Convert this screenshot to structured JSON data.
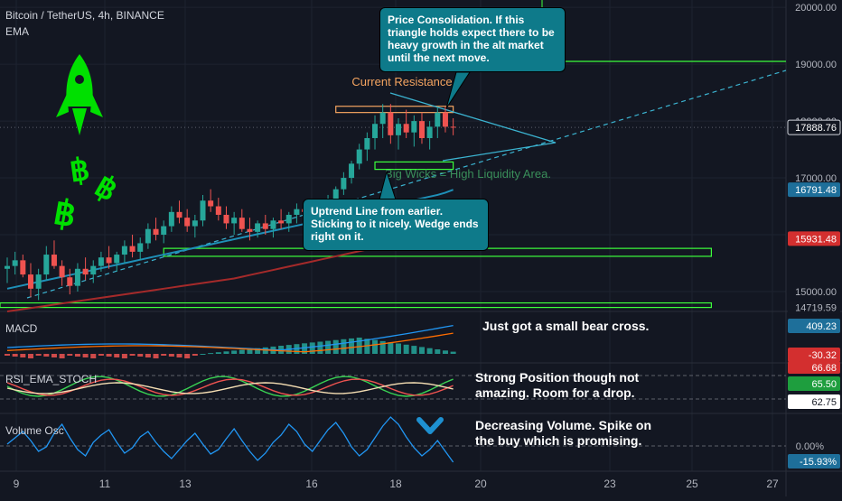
{
  "header": {
    "symbol": "Bitcoin / TetherUS, 4h, BINANCE",
    "indicator": "EMA"
  },
  "colors": {
    "background": "#131722",
    "up": "#26a69a",
    "down": "#ef5350",
    "ema_fast": "#1e90b8",
    "ema_slow": "#a52a2a",
    "zone": "#3cff3c",
    "resistance": "#f4a460",
    "callout": "#0e7a8a",
    "rocket": "#00e000"
  },
  "chart_data": {
    "type": "candlestick",
    "x_tick_labels": [
      "9",
      "11",
      "13",
      "16",
      "18",
      "20",
      "23",
      "25",
      "27"
    ],
    "price_axis_labels": [
      "20000.00",
      "19000.00",
      "18000.00",
      "17000.00",
      "15000.00"
    ],
    "price_tags": [
      {
        "label": "17888.76",
        "value": 17888.76,
        "style": "outline"
      },
      {
        "label": "16791.48",
        "value": 16791.48,
        "style": "ema"
      },
      {
        "label": "15931.48",
        "value": 15931.48,
        "style": "ema-slow"
      },
      {
        "label": "14719.59",
        "value": 14719.59,
        "style": "plain"
      }
    ],
    "ylim": [
      14650,
      20130
    ],
    "candles": [
      [
        15400,
        15600,
        15150,
        15450
      ],
      [
        15450,
        15700,
        15300,
        15550
      ],
      [
        15550,
        15650,
        15250,
        15300
      ],
      [
        15300,
        15500,
        14900,
        15050
      ],
      [
        15050,
        15400,
        14850,
        15300
      ],
      [
        15300,
        15800,
        15200,
        15650
      ],
      [
        15650,
        15900,
        15400,
        15450
      ],
      [
        15450,
        15550,
        15100,
        15250
      ],
      [
        15250,
        15400,
        14950,
        15100
      ],
      [
        15100,
        15500,
        15000,
        15400
      ],
      [
        15400,
        15600,
        15200,
        15300
      ],
      [
        15300,
        15550,
        15150,
        15450
      ],
      [
        15450,
        15700,
        15350,
        15600
      ],
      [
        15600,
        15800,
        15400,
        15500
      ],
      [
        15500,
        15700,
        15350,
        15650
      ],
      [
        15650,
        15900,
        15500,
        15800
      ],
      [
        15800,
        16000,
        15600,
        15700
      ],
      [
        15700,
        15950,
        15550,
        15850
      ],
      [
        15850,
        16200,
        15750,
        16100
      ],
      [
        16100,
        16300,
        15900,
        16000
      ],
      [
        16000,
        16250,
        15850,
        16150
      ],
      [
        16150,
        16500,
        16050,
        16400
      ],
      [
        16400,
        16600,
        16200,
        16300
      ],
      [
        16300,
        16450,
        16050,
        16150
      ],
      [
        16150,
        16350,
        15950,
        16250
      ],
      [
        16250,
        16700,
        16150,
        16600
      ],
      [
        16600,
        16800,
        16400,
        16500
      ],
      [
        16500,
        16650,
        16250,
        16350
      ],
      [
        16350,
        16500,
        16100,
        16200
      ],
      [
        16200,
        16400,
        16000,
        16300
      ],
      [
        16300,
        16450,
        16050,
        16100
      ],
      [
        16100,
        16300,
        15900,
        16050
      ],
      [
        16050,
        16250,
        15950,
        16200
      ],
      [
        16200,
        16350,
        16000,
        16100
      ],
      [
        16100,
        16300,
        15950,
        16250
      ],
      [
        16250,
        16450,
        16100,
        16200
      ],
      [
        16200,
        16400,
        16050,
        16350
      ],
      [
        16350,
        16550,
        16200,
        16450
      ],
      [
        16450,
        16600,
        16300,
        16400
      ],
      [
        16400,
        16550,
        16150,
        16300
      ],
      [
        16300,
        16500,
        16200,
        16450
      ],
      [
        16450,
        16700,
        16350,
        16600
      ],
      [
        16600,
        16850,
        16500,
        16800
      ],
      [
        16800,
        17100,
        16700,
        17000
      ],
      [
        17000,
        17300,
        16900,
        17250
      ],
      [
        17250,
        17600,
        17150,
        17500
      ],
      [
        17500,
        17800,
        17300,
        17700
      ],
      [
        17700,
        18100,
        17500,
        17950
      ],
      [
        17950,
        18300,
        17700,
        18150
      ],
      [
        18150,
        18300,
        17600,
        17750
      ],
      [
        17750,
        18050,
        17500,
        17950
      ],
      [
        17950,
        18200,
        17700,
        17800
      ],
      [
        17800,
        18100,
        17550,
        18000
      ],
      [
        18000,
        18150,
        17600,
        17700
      ],
      [
        17700,
        18000,
        17500,
        17900
      ],
      [
        17900,
        18250,
        17700,
        18150
      ],
      [
        18150,
        18250,
        17800,
        17900
      ],
      [
        17900,
        18050,
        17750,
        17890
      ]
    ],
    "series": [
      {
        "name": "EMA",
        "values": [
          15050,
          15080,
          15110,
          15140,
          15170,
          15200,
          15230,
          15260,
          15290,
          15320,
          15350,
          15380,
          15410,
          15440,
          15470,
          15500,
          15530,
          15560,
          15590,
          15620,
          15650,
          15680,
          15710,
          15740,
          15770,
          15800,
          15830,
          15860,
          15890,
          15920,
          15950,
          15980,
          16010,
          16040,
          16070,
          16100,
          16130,
          16160,
          16190,
          16220,
          16250,
          16280,
          16310,
          16340,
          16370,
          16400,
          16430,
          16460,
          16490,
          16520,
          16550,
          16580,
          16610,
          16640,
          16670,
          16700,
          16740,
          16791
        ]
      }
    ],
    "ema_slow_values": [
      14650,
      14670,
      14690,
      14710,
      14730,
      14750,
      14770,
      14790,
      14810,
      14830,
      14850,
      14870,
      14890,
      14910,
      14930,
      14950,
      14970,
      14990,
      15010,
      15030,
      15050,
      15070,
      15090,
      15110,
      15130,
      15150,
      15170,
      15190,
      15210,
      15230,
      15260,
      15290,
      15320,
      15350,
      15380,
      15410,
      15440,
      15470,
      15500,
      15530,
      15560,
      15590,
      15620,
      15650,
      15680,
      15710,
      15740,
      15770,
      15800,
      15830,
      15860,
      15880,
      15900,
      15910,
      15920,
      15925,
      15928,
      15931
    ],
    "zones": [
      {
        "kind": "resistance",
        "low": 18150,
        "high": 18260,
        "start": 42,
        "end": 57
      },
      {
        "kind": "support",
        "low": 17150,
        "high": 17280,
        "start": 47,
        "end": 57
      },
      {
        "kind": "support",
        "low": 15620,
        "high": 15760,
        "start": 20,
        "end": 90
      },
      {
        "kind": "support",
        "low": 14720,
        "high": 14800,
        "start": -5,
        "end": 90
      }
    ],
    "zone_labels": [
      {
        "text": "Current Resistance"
      },
      {
        "text": "Big Wicks = High Liquidity Area."
      }
    ],
    "macd": {
      "title": "MACD",
      "labels": [
        "409.23",
        "-30.32"
      ],
      "note": "Just got a small bear cross."
    },
    "stoch": {
      "title": "RSI_EMA_STOCH",
      "labels": [
        "66.68",
        "65.50",
        "62.75"
      ],
      "note": "Strong Position though not amazing. Room for a drop."
    },
    "volume": {
      "title": "Volume Osc",
      "labels": [
        "0.00%",
        "-15.93%"
      ],
      "note": "Decreasing Volume. Spike on the buy which is promising."
    }
  },
  "annotations": {
    "callout_top": "Price Consolidation. If this triangle holds expect there to be heavy growth in the alt market until the next move.",
    "callout_mid": "Uptrend Line from earlier. Sticking to it nicely. Wedge ends right on it."
  },
  "decor": {
    "icons": [
      "rocket-icon",
      "bitcoin-icon",
      "bitcoin-icon",
      "bitcoin-icon",
      "chevron-down-icon"
    ]
  }
}
